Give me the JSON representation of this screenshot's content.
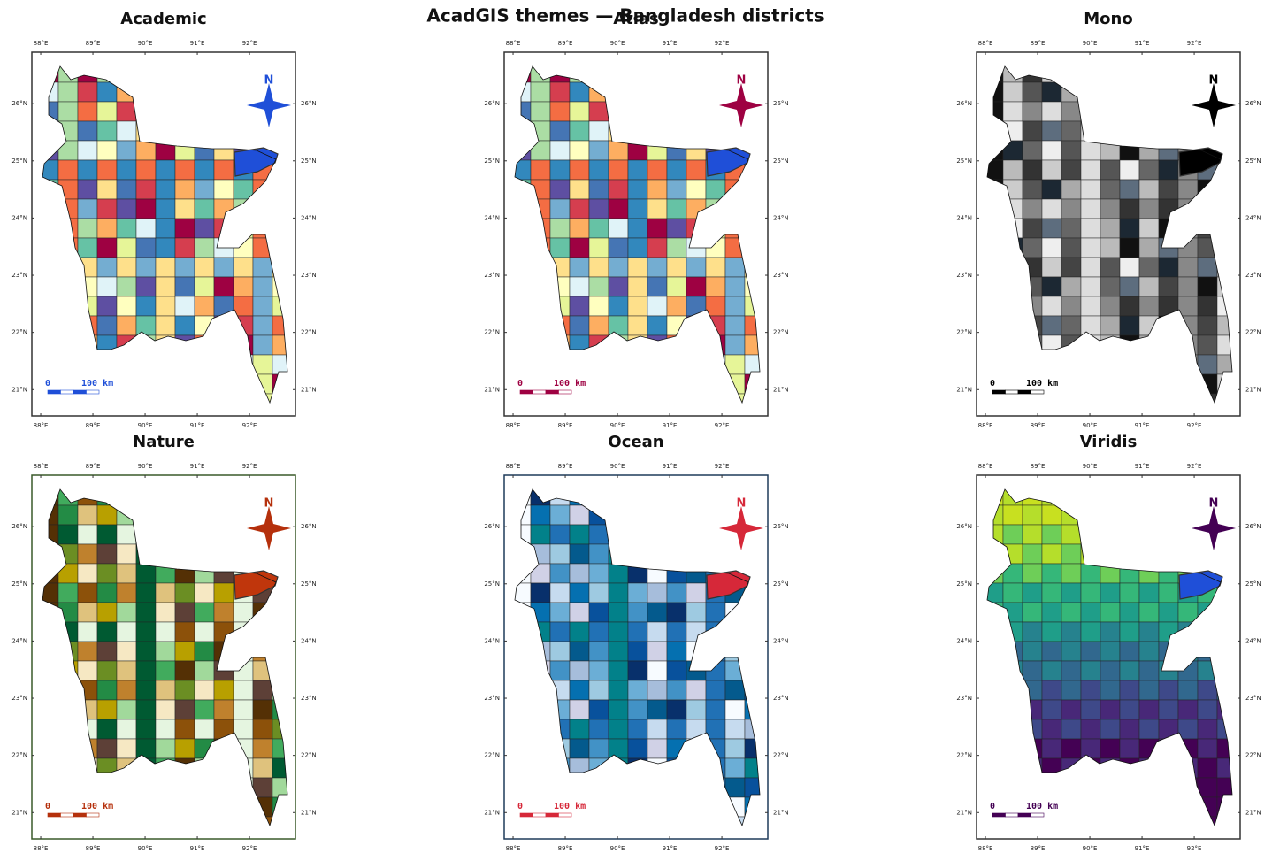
{
  "title": "AcadGIS themes — Bangladesh districts",
  "axes": {
    "xlim": [
      87.83,
      92.88
    ],
    "ylim": [
      20.54,
      26.9
    ],
    "xticks": [
      {
        "value": 88,
        "label": "88°E"
      },
      {
        "value": 89,
        "label": "89°E"
      },
      {
        "value": 90,
        "label": "90°E"
      },
      {
        "value": 91,
        "label": "91°E"
      },
      {
        "value": 92,
        "label": "92°E"
      }
    ],
    "yticks": [
      {
        "value": 21,
        "label": "21°N"
      },
      {
        "value": 22,
        "label": "22°N"
      },
      {
        "value": 23,
        "label": "23°N"
      },
      {
        "value": 24,
        "label": "24°N"
      },
      {
        "value": 25,
        "label": "25°N"
      },
      {
        "value": 26,
        "label": "26°N"
      }
    ]
  },
  "north_label": "N",
  "scale_bar": {
    "start": "0",
    "end": "100 km"
  },
  "panels": [
    {
      "title": "Academic",
      "frame_color": "#333333",
      "accent_color": "#1f4fd8",
      "highlight_color": "#1f4fd8",
      "fill_order": "random",
      "palette": [
        "#9e0142",
        "#d53e4f",
        "#f46d43",
        "#fdae61",
        "#fee08b",
        "#ffffbf",
        "#e6f598",
        "#abdda4",
        "#66c2a5",
        "#3288bd",
        "#5e4fa2",
        "#74add1",
        "#4575b4",
        "#e0f3f8"
      ]
    },
    {
      "title": "Atlas",
      "frame_color": "#333333",
      "accent_color": "#9e0142",
      "highlight_color": "#1f4fd8",
      "fill_order": "random",
      "palette": [
        "#9e0142",
        "#d53e4f",
        "#f46d43",
        "#fdae61",
        "#fee08b",
        "#ffffbf",
        "#e6f598",
        "#abdda4",
        "#66c2a5",
        "#3288bd",
        "#5e4fa2",
        "#74add1",
        "#4575b4",
        "#e0f3f8"
      ]
    },
    {
      "title": "Mono",
      "frame_color": "#333333",
      "accent_color": "#000000",
      "highlight_color": "#000000",
      "fill_order": "random",
      "palette": [
        "#111111",
        "#333333",
        "#444444",
        "#555555",
        "#666666",
        "#888888",
        "#aaaaaa",
        "#bbbbbb",
        "#cccccc",
        "#dddddd",
        "#eeeeee",
        "#1c2833",
        "#5d6d7e"
      ]
    },
    {
      "title": "Nature",
      "frame_color": "#3a5a2a",
      "accent_color": "#b5300c",
      "highlight_color": "#c0360c",
      "fill_order": "random",
      "palette": [
        "#543005",
        "#8c510a",
        "#bf812d",
        "#dfc27d",
        "#f6e8c3",
        "#e5f5e0",
        "#a1d99b",
        "#41ab5d",
        "#238b45",
        "#005a32",
        "#6b8e23",
        "#b8a000",
        "#5d4037"
      ]
    },
    {
      "title": "Ocean",
      "frame_color": "#1f3b5a",
      "accent_color": "#d62839",
      "highlight_color": "#d62839",
      "fill_order": "random",
      "palette": [
        "#f7fbff",
        "#c6dbef",
        "#9ecae1",
        "#6baed6",
        "#4292c6",
        "#2171b5",
        "#08519c",
        "#08306b",
        "#0570b0",
        "#02818a",
        "#a6bddb",
        "#d0d1e6",
        "#045a8d"
      ]
    },
    {
      "title": "Viridis",
      "frame_color": "#333333",
      "accent_color": "#440154",
      "highlight_color": "#1f4fd8",
      "fill_order": "north-south",
      "palette": [
        "#c8e020",
        "#b5de2b",
        "#6ece58",
        "#35b779",
        "#1f9e89",
        "#26828e",
        "#31688e",
        "#3e4989",
        "#482878",
        "#440154"
      ]
    }
  ]
}
